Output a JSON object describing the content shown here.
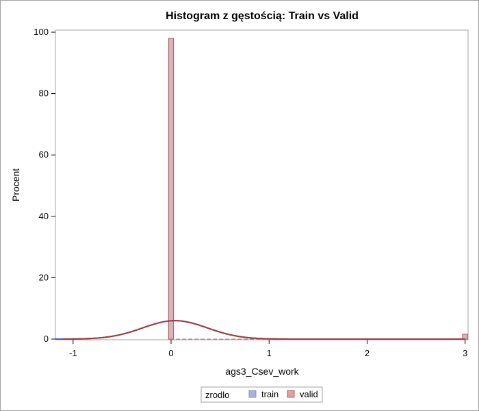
{
  "chart_data": {
    "type": "bar",
    "title": "Histogram z gęstością: Train vs Valid",
    "xlabel": "ags3_Csev_work",
    "ylabel": "Procent",
    "xlim": [
      -1.18,
      3.03
    ],
    "ylim": [
      0,
      100
    ],
    "xticks": [
      -1,
      0,
      1,
      2,
      3
    ],
    "yticks": [
      0,
      20,
      40,
      60,
      80,
      100
    ],
    "bin_width": 0.05,
    "legend": {
      "title": "zrodlo",
      "placement": "bottom-center"
    },
    "series": [
      {
        "name": "train",
        "color": "#a9b4d8",
        "edge_color": "#7f8fc4",
        "bins": [
          {
            "x": 0.0,
            "value": 98.0
          },
          {
            "x": 3.0,
            "value": 1.6
          }
        ]
      },
      {
        "name": "valid",
        "color": "#e0a0a0",
        "edge_color": "#b06060",
        "bins": [
          {
            "x": 0.0,
            "value": 98.0
          },
          {
            "x": 3.0,
            "value": 1.6
          }
        ]
      }
    ],
    "density_curves": [
      {
        "name": "train",
        "color": "#3a5bc8",
        "mean": 0.04,
        "sd": 0.33,
        "peak": 6.0
      },
      {
        "name": "valid",
        "color": "#a03a3a",
        "mean": 0.04,
        "sd": 0.33,
        "peak": 6.0
      }
    ]
  }
}
